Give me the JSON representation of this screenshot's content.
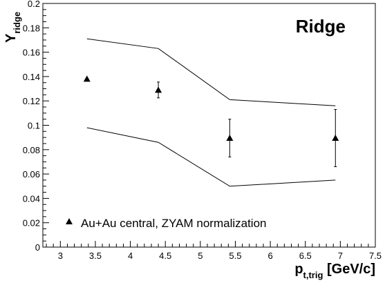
{
  "chart_data": {
    "type": "scatter",
    "title": "Ridge",
    "xlabel": {
      "main": "p",
      "sub": "t,trig",
      "unit": " [GeV/c]"
    },
    "ylabel": {
      "main": "Y",
      "sub": "ridge"
    },
    "xlim": [
      2.75,
      7.5
    ],
    "ylim": [
      0,
      0.2
    ],
    "x_ticks": [
      "3",
      "3.5",
      "4",
      "4.5",
      "5",
      "5.5",
      "6",
      "6.5",
      "7",
      "7.5"
    ],
    "y_ticks": [
      "0",
      "0.02",
      "0.04",
      "0.06",
      "0.08",
      "0.1",
      "0.12",
      "0.14",
      "0.16",
      "0.18",
      "0.2"
    ],
    "grid": false,
    "legend_position": "bottom-left",
    "series": [
      {
        "name": "Au+Au central, ZYAM normalization",
        "marker": "triangle",
        "points": [
          {
            "x": 3.38,
            "y": 0.138,
            "err": 0.0
          },
          {
            "x": 4.4,
            "y": 0.129,
            "err": 0.0065
          },
          {
            "x": 5.42,
            "y": 0.0895,
            "err": 0.0155
          },
          {
            "x": 6.93,
            "y": 0.0895,
            "err": 0.0235
          }
        ]
      }
    ],
    "bands": {
      "upper": [
        {
          "x": 3.38,
          "y": 0.171
        },
        {
          "x": 4.4,
          "y": 0.163
        },
        {
          "x": 5.42,
          "y": 0.121
        },
        {
          "x": 6.93,
          "y": 0.116
        }
      ],
      "lower": [
        {
          "x": 3.38,
          "y": 0.098
        },
        {
          "x": 4.4,
          "y": 0.086
        },
        {
          "x": 5.42,
          "y": 0.05
        },
        {
          "x": 6.93,
          "y": 0.055
        }
      ]
    }
  }
}
